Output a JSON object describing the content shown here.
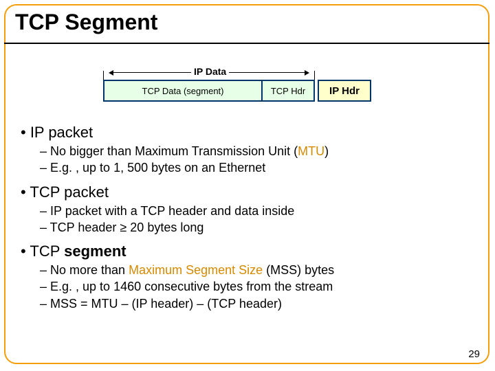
{
  "title": "TCP Segment",
  "page_number": "29",
  "colors": {
    "frame_border": "#f59e0b",
    "title_rule": "#000000",
    "box_border": "#003366",
    "tcp_fill": "#e6ffe6",
    "ip_fill": "#ffffcc",
    "accent_text": "#d68a00",
    "body_text": "#000000",
    "background": "#ffffff"
  },
  "diagram": {
    "span_label": "IP Data",
    "boxes": {
      "tcp_data": "TCP Data (segment)",
      "tcp_hdr": "TCP Hdr",
      "ip_hdr": "IP Hdr"
    }
  },
  "bullets": {
    "ip_packet": {
      "label": "• IP packet",
      "sub1_pre": "– No bigger than Maximum Transmission Unit (",
      "sub1_accent": "MTU",
      "sub1_post": ")",
      "sub2": "– E.g. , up to 1, 500 bytes on an Ethernet"
    },
    "tcp_packet": {
      "label": "• TCP packet",
      "sub1": "– IP packet with a TCP header and data inside",
      "sub2": "– TCP header ≥ 20 bytes long"
    },
    "tcp_segment": {
      "label_pre": "• TCP ",
      "label_bold": "segment",
      "sub1_pre": "– No more than ",
      "sub1_accent": "Maximum Segment Size",
      "sub1_post": " (MSS) bytes",
      "sub2": "– E.g. , up to 1460 consecutive bytes from the stream",
      "sub3": "– MSS = MTU – (IP header) – (TCP header)"
    }
  }
}
